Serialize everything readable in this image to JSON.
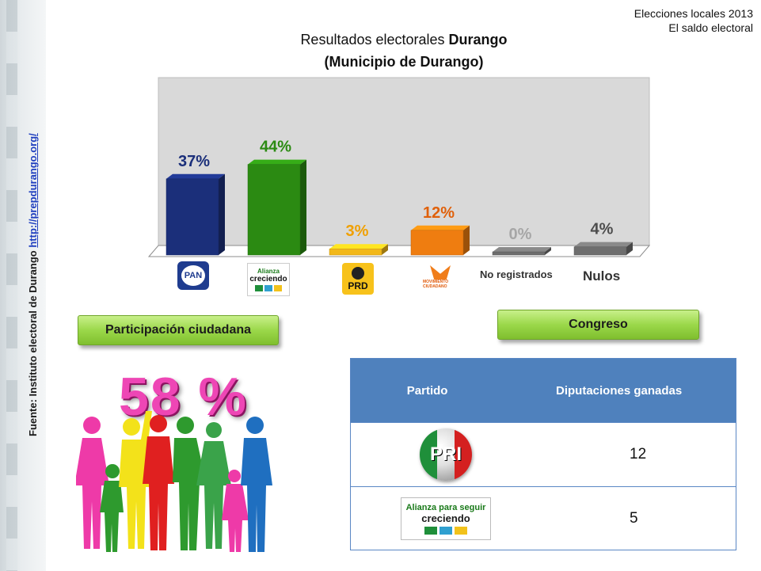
{
  "header": {
    "top_right_line1": "Elecciones locales 2013",
    "top_right_line2": "El saldo electoral"
  },
  "source": {
    "prefix": "Fuente: Instituto electoral de Durango ",
    "url_text": "http://prepdurango.org/"
  },
  "chart_data": {
    "type": "bar",
    "title_line1_normal": "Resultados electorales ",
    "title_line1_bold": "Durango",
    "title_line2": "(Municipio de Durango)",
    "categories": [
      "PAN",
      "Alianza para seguir creciendo",
      "PRD",
      "Movimiento Ciudadano",
      "No registrados",
      "Nulos"
    ],
    "values": [
      37,
      44,
      3,
      12,
      0,
      4
    ],
    "data_labels": [
      "37%",
      "44%",
      "3%",
      "12%",
      "0%",
      "4%"
    ],
    "colors": [
      "#1b2f7a",
      "#2b8a12",
      "#f2b81a",
      "#ef7d10",
      "#6e6e6e",
      "#6e6e6e"
    ],
    "label_colors": [
      "#1b2f7a",
      "#2b8a12",
      "#f0a000",
      "#e0600a",
      "#a6a6a6",
      "#4d4d4d"
    ],
    "ylim": [
      0,
      100
    ],
    "xlabel": "",
    "ylabel": ""
  },
  "category_logos": {
    "pan": "PAN",
    "alliance_line1": "Alianza",
    "alliance_line2": "creciendo",
    "prd": "PRD",
    "mc": "MOVIMIENTO CIUDADANO",
    "no_registrados": "No registrados",
    "nulos": "Nulos"
  },
  "participation": {
    "button_label": "Participación ciudadana",
    "percent": "58 %",
    "icon": "people-crowd-icon"
  },
  "congreso": {
    "button_label": "Congreso",
    "table": {
      "headers": [
        "Partido",
        "Diputaciones ganadas"
      ],
      "rows": [
        {
          "party_logo": "PRI",
          "seats": "12"
        },
        {
          "party_logo_line1": "Alianza para seguir",
          "party_logo_line2": "creciendo",
          "seats": "5"
        }
      ]
    }
  }
}
